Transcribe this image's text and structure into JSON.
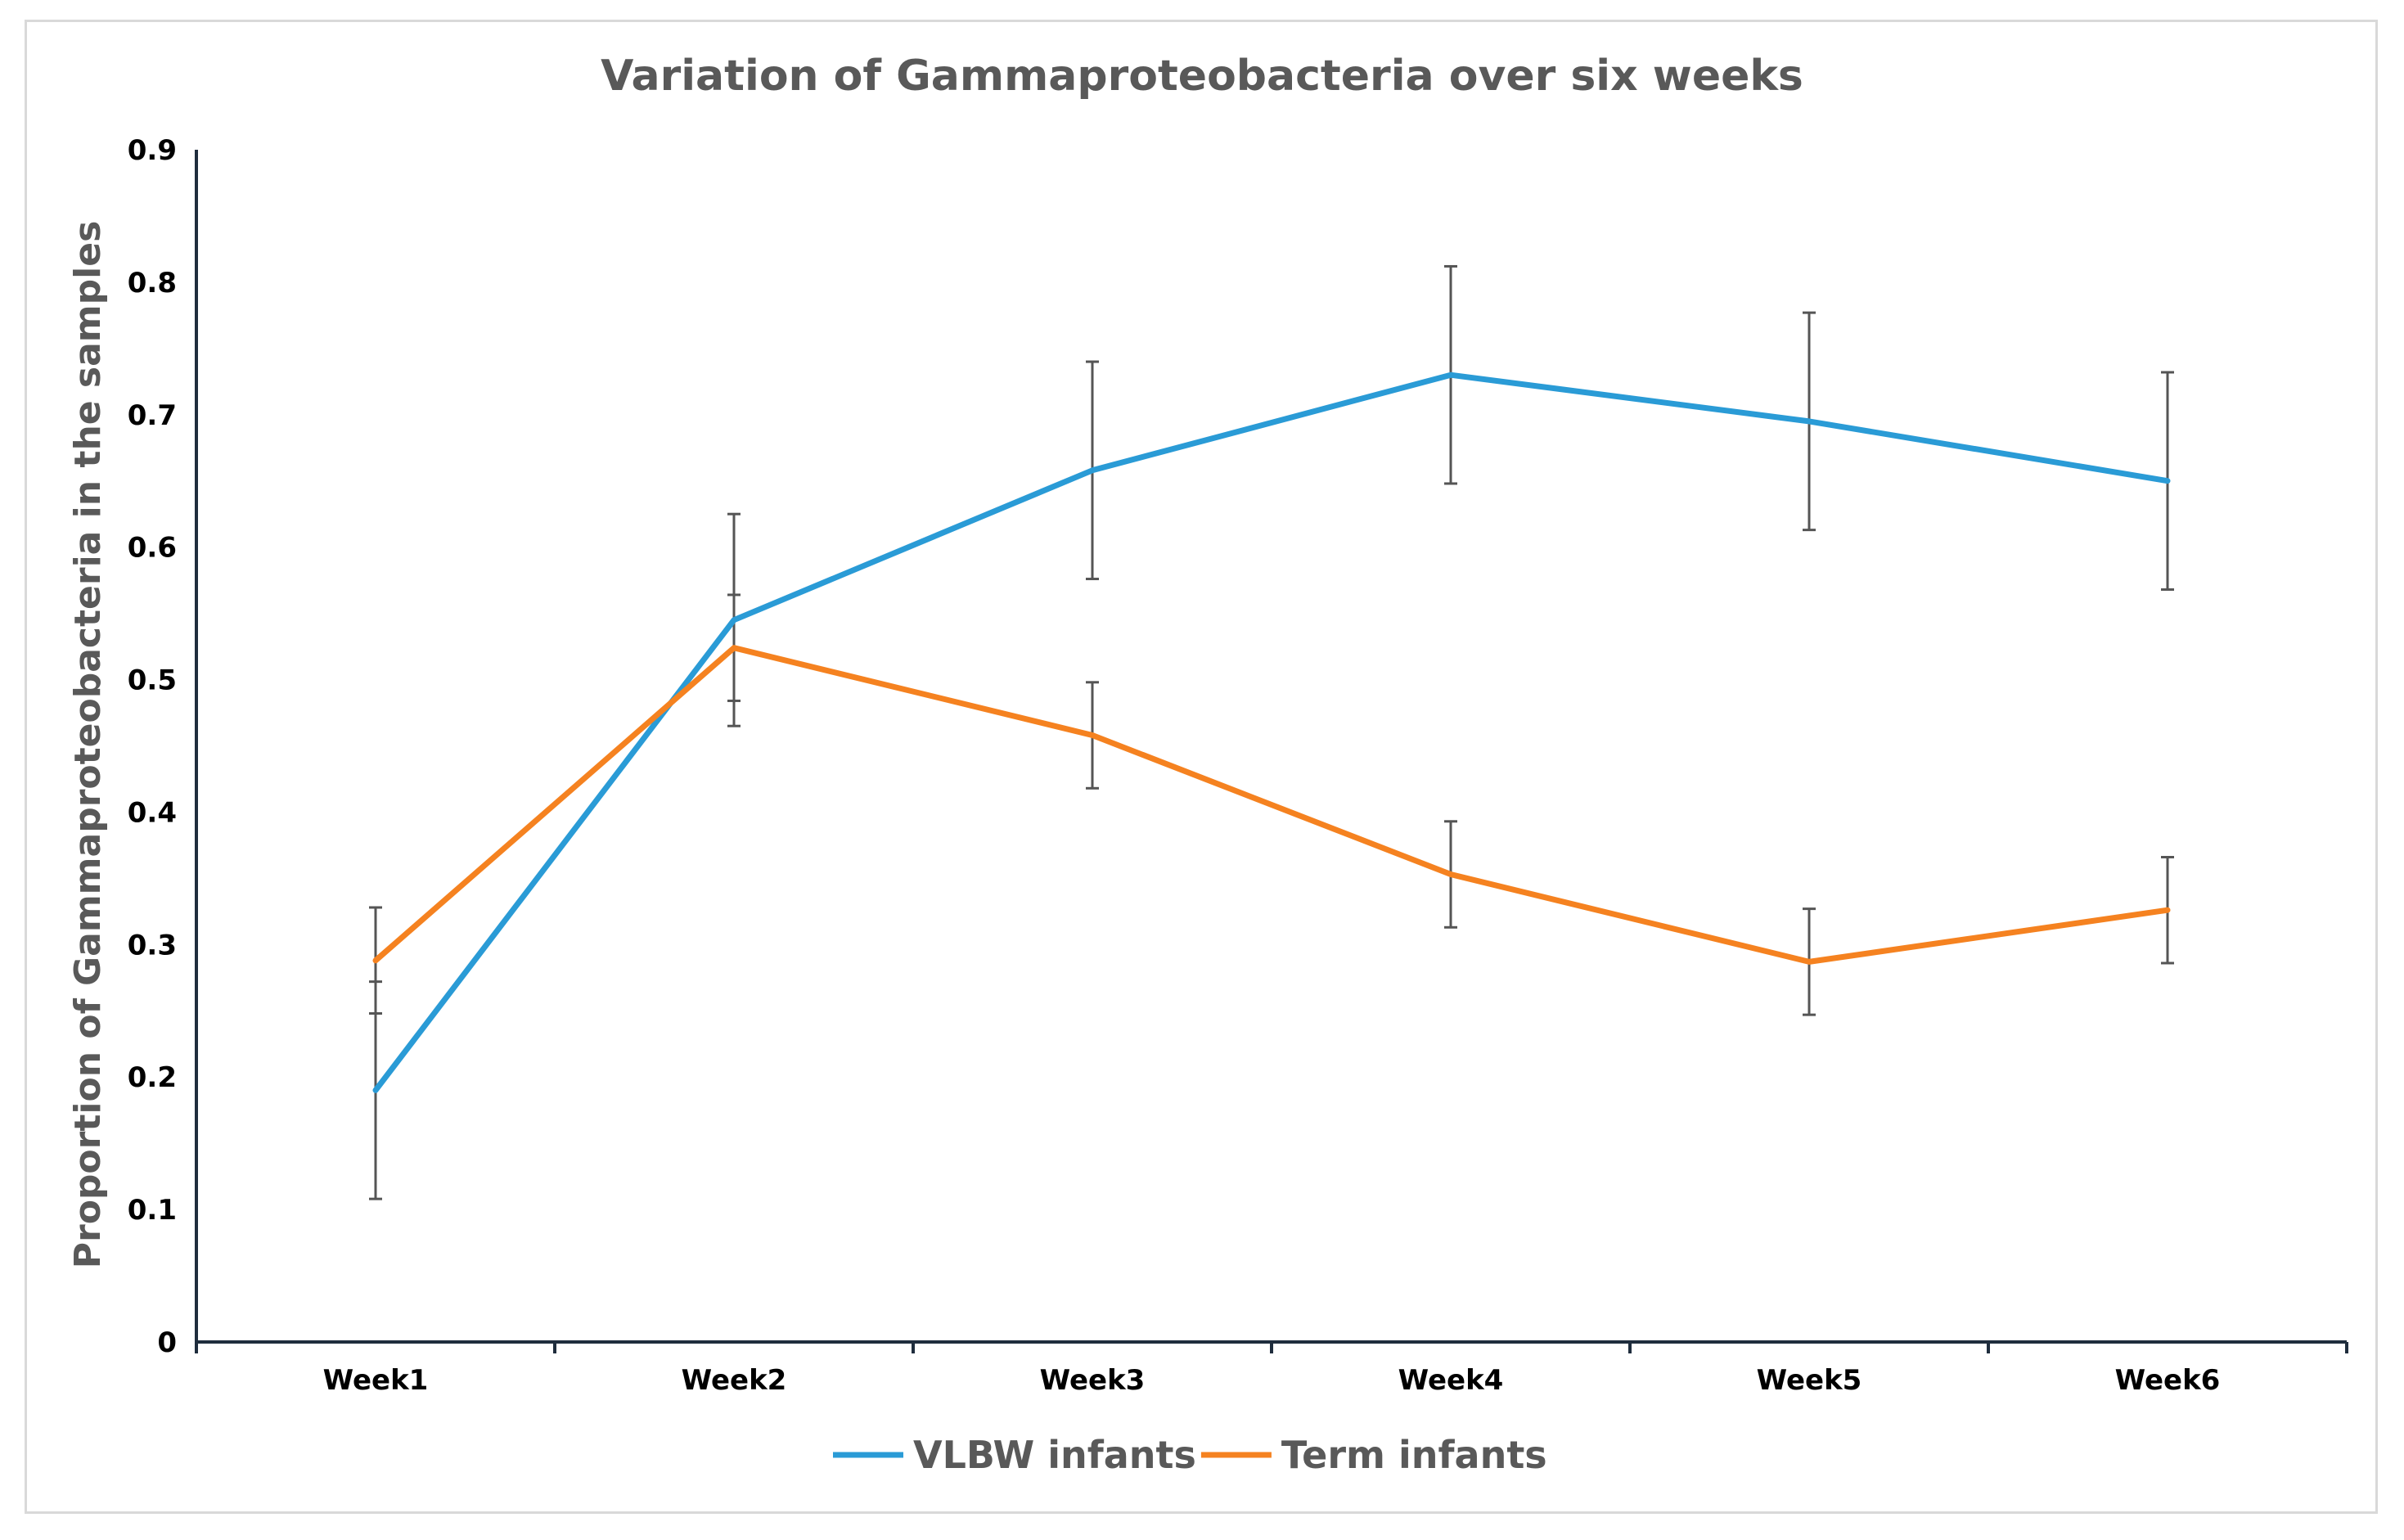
{
  "chart_data": {
    "type": "line",
    "title": "Variation of Gammaproteobacteria over six weeks",
    "xlabel": "",
    "ylabel": "Proportion of Gammaproteobacteria in the samples",
    "categories": [
      "Week1",
      "Week2",
      "Week3",
      "Week4",
      "Week5",
      "Week6"
    ],
    "ylim": [
      0,
      0.9
    ],
    "yticks": [
      "0",
      "0.1",
      "0.2",
      "0.3",
      "0.4",
      "0.5",
      "0.6",
      "0.7",
      "0.8",
      "0.9"
    ],
    "grid": false,
    "legend_position": "bottom-center",
    "series": [
      {
        "name": "VLBW infants",
        "color": "#2a9bd6",
        "values": [
          0.19,
          0.545,
          0.658,
          0.73,
          0.695,
          0.65
        ],
        "error": [
          0.082,
          0.08,
          0.082,
          0.082,
          0.082,
          0.082
        ]
      },
      {
        "name": "Term infants",
        "color": "#f58220",
        "values": [
          0.288,
          0.524,
          0.458,
          0.353,
          0.287,
          0.326
        ],
        "error": [
          0.04,
          0.04,
          0.04,
          0.04,
          0.04,
          0.04
        ]
      }
    ],
    "colors": {
      "axis": "#1f2d3d",
      "title": "#595959",
      "error_bar": "#555555"
    }
  }
}
